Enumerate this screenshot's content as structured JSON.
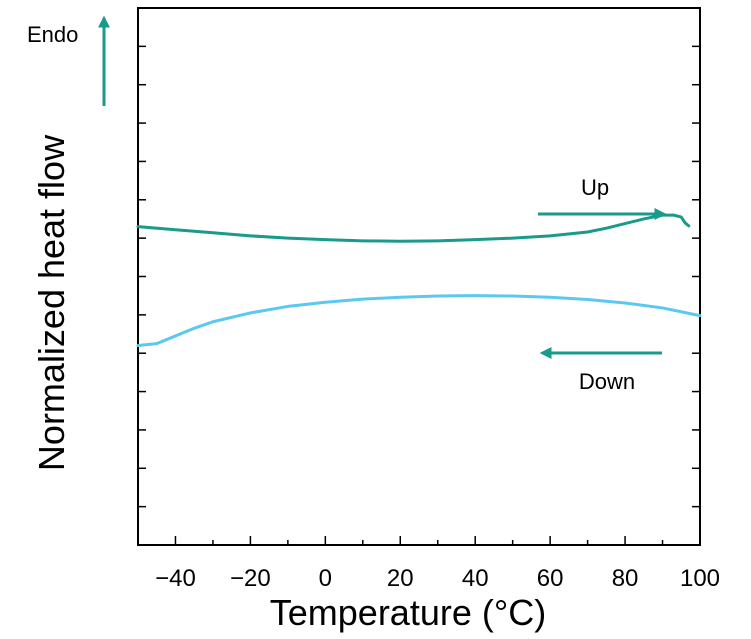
{
  "chart_data": {
    "type": "line",
    "xlabel": "Temperature (°C)",
    "ylabel": "Normalized heat flow",
    "xlim": [
      -50,
      100
    ],
    "ylim": [
      0,
      14
    ],
    "xticks": [
      -40,
      -20,
      0,
      20,
      40,
      60,
      80,
      100
    ],
    "y_tick_labels_shown": false,
    "grid": false,
    "series": [
      {
        "name": "Up",
        "color": "#1a9a8a",
        "x": [
          -50,
          -40,
          -30,
          -20,
          -10,
          0,
          10,
          20,
          30,
          40,
          50,
          60,
          70,
          75,
          80,
          85,
          90,
          93,
          95,
          96,
          97
        ],
        "y": [
          8.3,
          8.22,
          8.14,
          8.06,
          8.0,
          7.96,
          7.93,
          7.92,
          7.93,
          7.96,
          8.0,
          8.06,
          8.16,
          8.26,
          8.38,
          8.5,
          8.6,
          8.6,
          8.55,
          8.4,
          8.32
        ]
      },
      {
        "name": "Down",
        "color": "#5bc8f0",
        "x": [
          -50,
          -45,
          -40,
          -35,
          -30,
          -20,
          -10,
          0,
          10,
          20,
          30,
          40,
          50,
          60,
          70,
          80,
          90,
          100
        ],
        "y": [
          5.2,
          5.25,
          5.45,
          5.65,
          5.82,
          6.05,
          6.22,
          6.33,
          6.41,
          6.46,
          6.49,
          6.5,
          6.49,
          6.46,
          6.4,
          6.31,
          6.18,
          5.98
        ]
      }
    ],
    "annotations": [
      {
        "text": "Endo",
        "arrow": "up",
        "color": "#1a9a8a"
      },
      {
        "text": "Up",
        "arrow": "right",
        "color": "#1a9a8a"
      },
      {
        "text": "Down",
        "arrow": "left",
        "color": "#1a9a8a"
      }
    ]
  }
}
